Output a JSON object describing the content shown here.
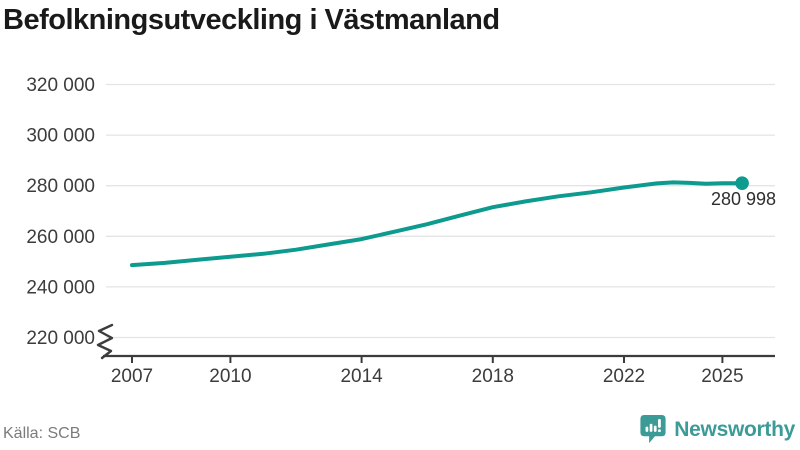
{
  "title": "Befolkningsutveckling i Västmanland",
  "source_label": "Källa: SCB",
  "branding": {
    "name": "Newsworthy"
  },
  "colors": {
    "line": "#0d9a8f",
    "dot": "#0d9a8f",
    "grid": "#e4e4e4",
    "axis": "#3c3c3c",
    "tick_text": "#3c3c3c",
    "title_text": "#1a1a1a",
    "annotation_text": "#2e2e2e",
    "source_text": "#7b7b7b",
    "brand": "#3d9b97",
    "background": "#ffffff"
  },
  "chart_data": {
    "type": "line",
    "title": "Befolkningsutveckling i Västmanland",
    "xlabel": "",
    "ylabel": "",
    "x": [
      2007,
      2008,
      2009,
      2010,
      2011,
      2012,
      2013,
      2014,
      2015,
      2016,
      2017,
      2018,
      2019,
      2020,
      2021,
      2022,
      2023,
      2023.5,
      2024,
      2024.5,
      2025,
      2025.6
    ],
    "values": [
      248600,
      249500,
      250700,
      251900,
      253100,
      254700,
      256800,
      258900,
      261800,
      264800,
      268200,
      271500,
      273800,
      275800,
      277400,
      279300,
      280900,
      281300,
      281100,
      280800,
      281000,
      280998
    ],
    "last_point": {
      "x": 2025.6,
      "value": 280998,
      "label": "280 998"
    },
    "yticks": [
      320000,
      300000,
      280000,
      260000,
      240000,
      220000
    ],
    "ytick_labels": [
      "320 000",
      "300 000",
      "280 000",
      "260 000",
      "240 000",
      "220 000"
    ],
    "xticks": [
      2007,
      2010,
      2014,
      2018,
      2022,
      2025
    ],
    "xtick_labels": [
      "2007",
      "2010",
      "2014",
      "2018",
      "2022",
      "2025"
    ],
    "ylim": [
      220000,
      320000
    ],
    "xlim": [
      2006.2,
      2026.6
    ],
    "grid": true,
    "legend": false,
    "y_axis_break": true
  }
}
